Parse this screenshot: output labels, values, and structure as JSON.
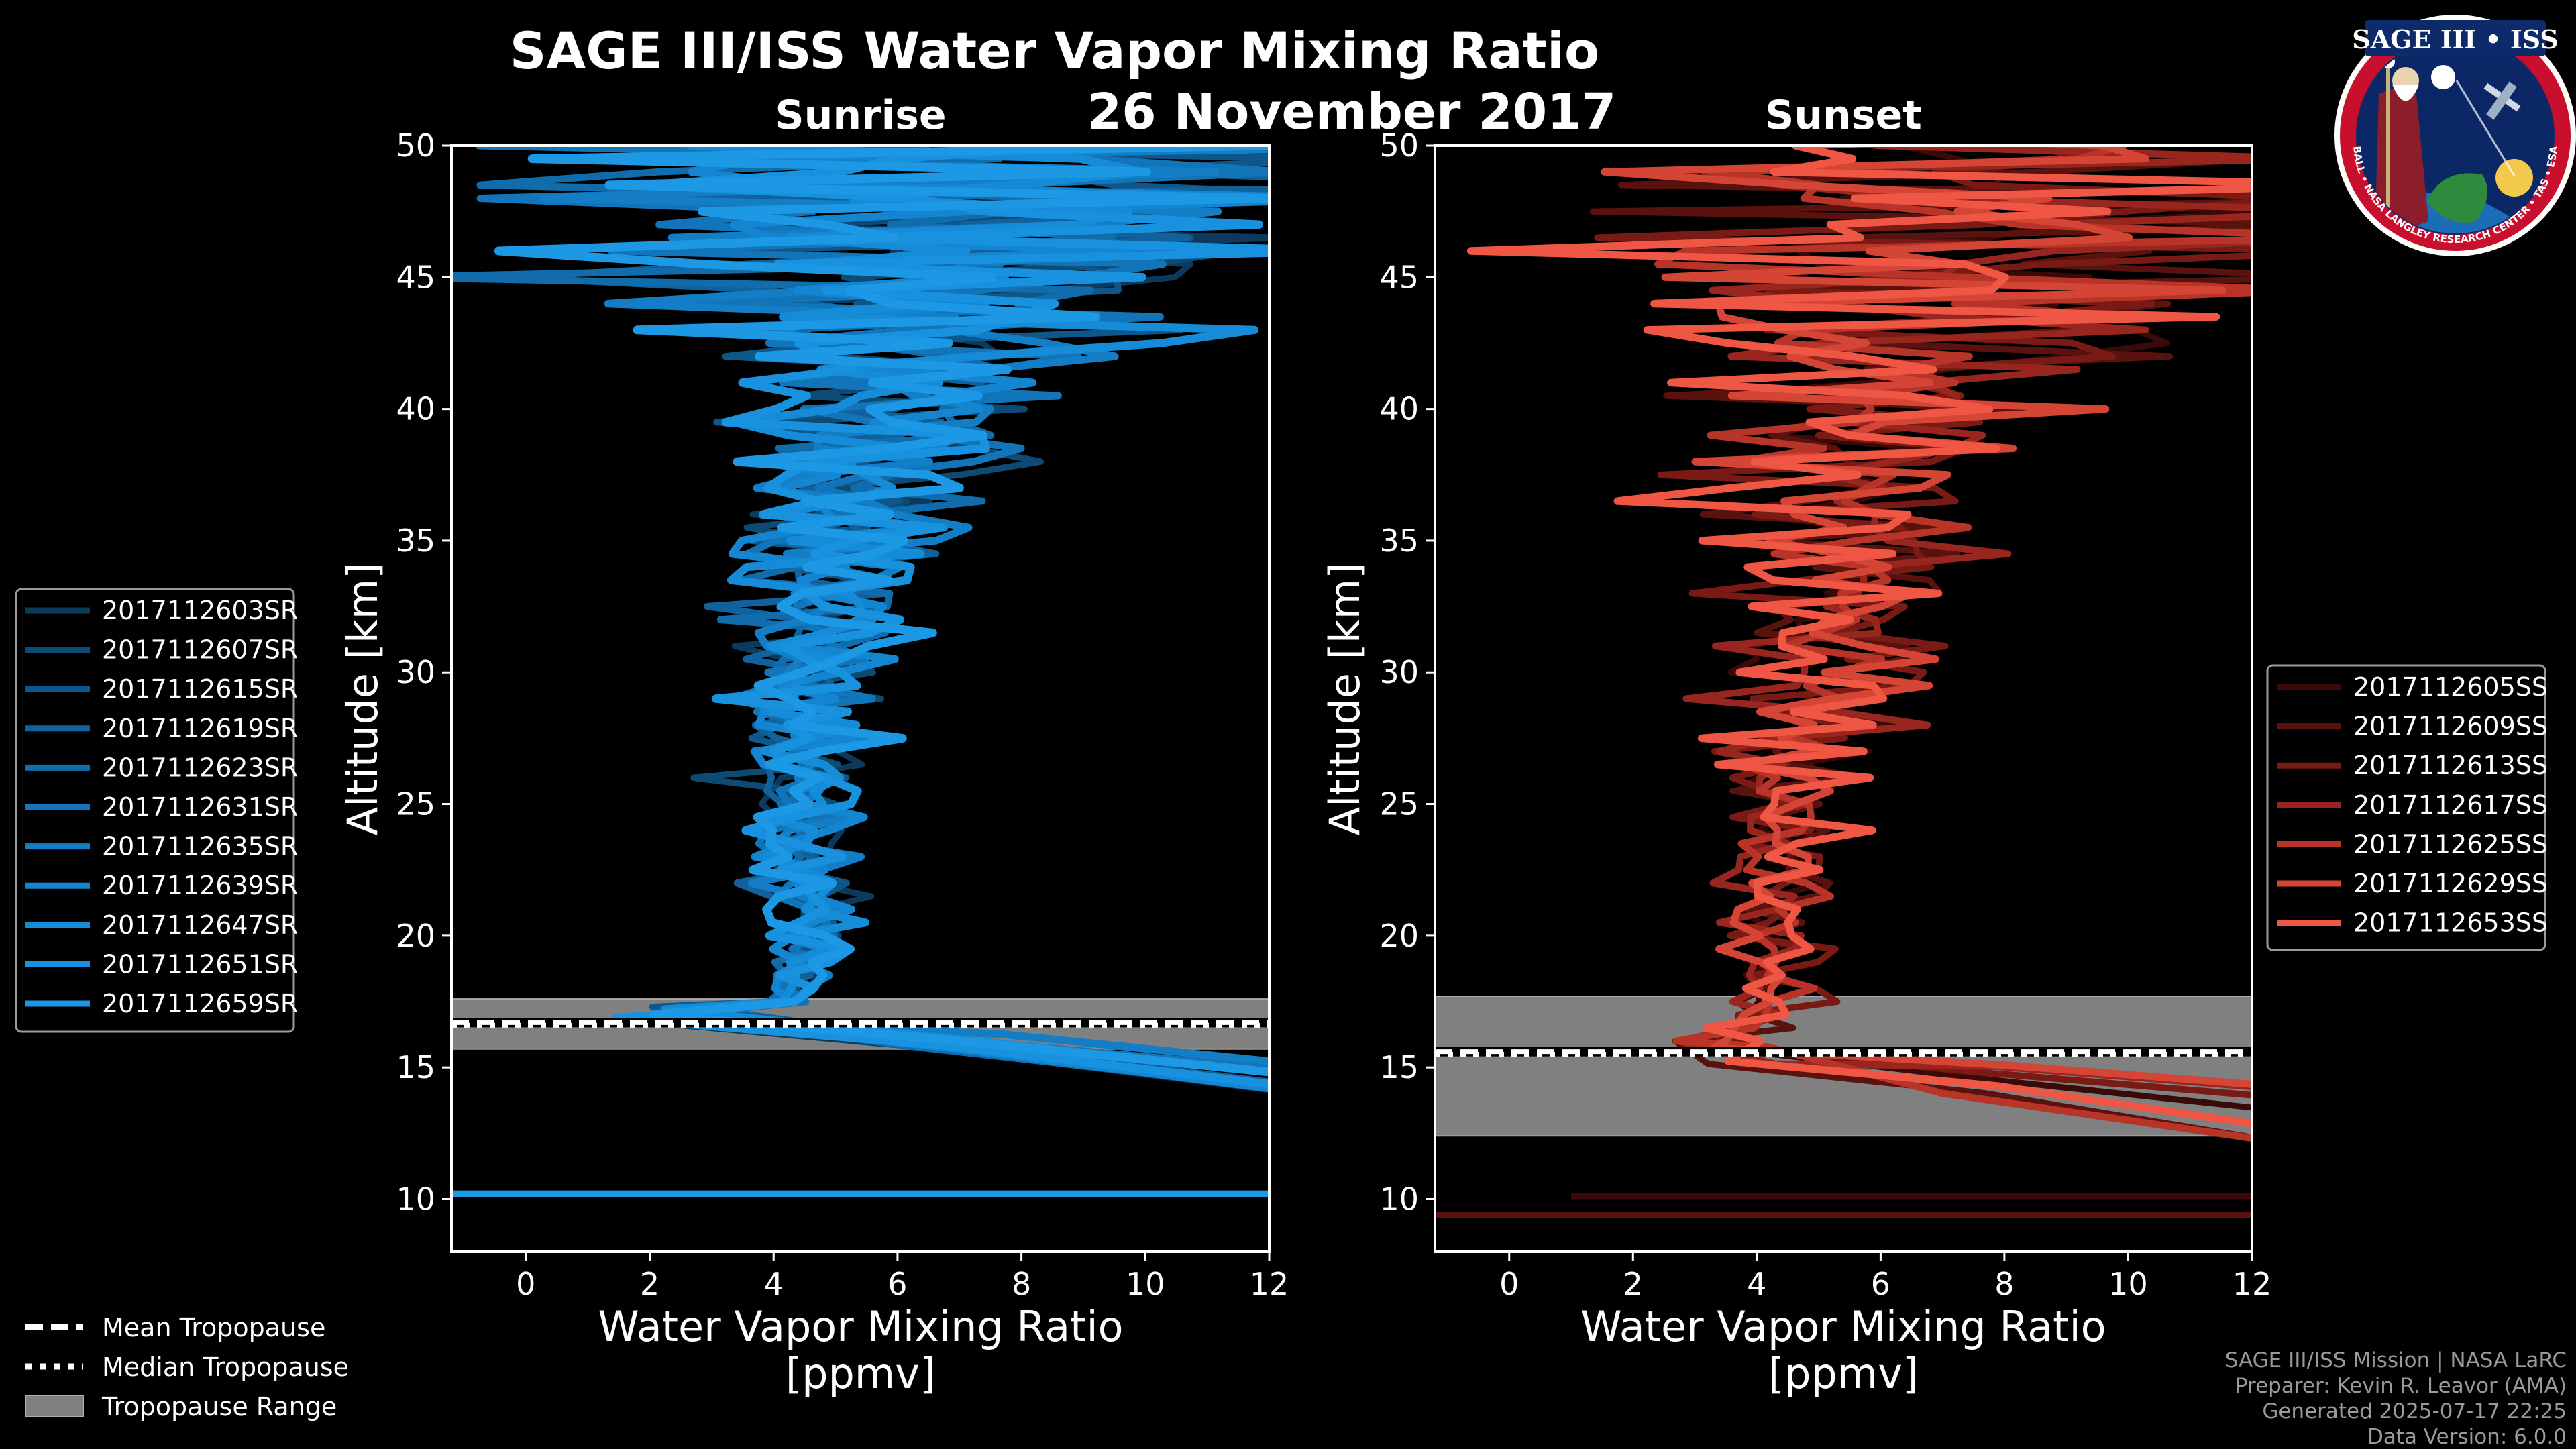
{
  "header": {
    "title": "SAGE III/ISS Water Vapor Mixing Ratio",
    "date": "26 November 2017"
  },
  "logo": {
    "name": "SAGE III • ISS",
    "ring_text": "BALL • NASA LANGLEY RESEARCH CENTER • TAS • ESA"
  },
  "chart_data": [
    {
      "type": "line",
      "panel": "sunrise",
      "subtitle": "Sunrise",
      "xlabel_line1": "Water Vapor Mixing Ratio",
      "xlabel_line2": "[ppmv]",
      "ylabel": "Altitude [km]",
      "xlim": [
        -1.2,
        12
      ],
      "ylim": [
        8,
        50
      ],
      "xticks": [
        0,
        2,
        4,
        6,
        8,
        10,
        12
      ],
      "yticks": [
        10,
        15,
        20,
        25,
        30,
        35,
        40,
        45,
        50
      ],
      "series": [
        {
          "name": "2017112603SR",
          "color": "#0b3a5c"
        },
        {
          "name": "2017112607SR",
          "color": "#0d4a74"
        },
        {
          "name": "2017112615SR",
          "color": "#0f578a"
        },
        {
          "name": "2017112619SR",
          "color": "#10619c"
        },
        {
          "name": "2017112623SR",
          "color": "#116cac"
        },
        {
          "name": "2017112631SR",
          "color": "#1275ba"
        },
        {
          "name": "2017112635SR",
          "color": "#137dc6"
        },
        {
          "name": "2017112639SR",
          "color": "#1485d0"
        },
        {
          "name": "2017112647SR",
          "color": "#168cd8"
        },
        {
          "name": "2017112651SR",
          "color": "#1892de"
        },
        {
          "name": "2017112659SR",
          "color": "#1c98e4"
        }
      ],
      "tropopause": {
        "mean": 16.7,
        "median": 16.6,
        "min": 15.7,
        "max": 17.6
      },
      "profile_mean": [
        [
          17.0,
          3.9
        ],
        [
          18,
          4.4
        ],
        [
          20,
          4.6
        ],
        [
          22,
          4.5
        ],
        [
          25,
          4.4
        ],
        [
          28,
          4.5
        ],
        [
          30,
          4.6
        ],
        [
          32,
          4.9
        ],
        [
          35,
          5.2
        ],
        [
          38,
          5.6
        ],
        [
          40,
          6.0
        ],
        [
          42,
          6.3
        ],
        [
          45,
          6.6
        ],
        [
          50,
          7.0
        ]
      ],
      "profile_spread": [
        [
          17.0,
          0.5
        ],
        [
          20,
          0.7
        ],
        [
          25,
          1.0
        ],
        [
          30,
          1.3
        ],
        [
          35,
          1.8
        ],
        [
          40,
          2.8
        ],
        [
          43,
          4.5
        ],
        [
          46,
          6.5
        ],
        [
          50,
          7.5
        ]
      ],
      "low_feature": {
        "pivot_alt": 17.0,
        "pivot_x": 1.8,
        "end_alt_min": 14.0,
        "end_alt_max": 15.2
      }
    },
    {
      "type": "line",
      "panel": "sunset",
      "subtitle": "Sunset",
      "xlabel_line1": "Water Vapor Mixing Ratio",
      "xlabel_line2": "[ppmv]",
      "ylabel": "Altitude [km]",
      "xlim": [
        -1.2,
        12
      ],
      "ylim": [
        8,
        50
      ],
      "xticks": [
        0,
        2,
        4,
        6,
        8,
        10,
        12
      ],
      "yticks": [
        10,
        15,
        20,
        25,
        30,
        35,
        40,
        45,
        50
      ],
      "series": [
        {
          "name": "2017112605SS",
          "color": "#3a0a08"
        },
        {
          "name": "2017112609SS",
          "color": "#5a120e"
        },
        {
          "name": "2017112613SS",
          "color": "#7a1a15"
        },
        {
          "name": "2017112617SS",
          "color": "#98261e"
        },
        {
          "name": "2017112625SS",
          "color": "#b83328"
        },
        {
          "name": "2017112629SS",
          "color": "#d44535"
        },
        {
          "name": "2017112653SS",
          "color": "#ef5744"
        }
      ],
      "tropopause": {
        "mean": 15.6,
        "median": 15.5,
        "min": 12.4,
        "max": 17.7
      },
      "profile_mean": [
        [
          15.0,
          3.0
        ],
        [
          17,
          4.2
        ],
        [
          20,
          4.4
        ],
        [
          22,
          4.3
        ],
        [
          25,
          4.4
        ],
        [
          28,
          4.7
        ],
        [
          30,
          5.0
        ],
        [
          32,
          5.2
        ],
        [
          35,
          5.4
        ],
        [
          38,
          5.7
        ],
        [
          40,
          6.2
        ],
        [
          42,
          6.6
        ],
        [
          45,
          6.9
        ],
        [
          50,
          7.0
        ]
      ],
      "profile_spread": [
        [
          15.0,
          0.8
        ],
        [
          18,
          0.8
        ],
        [
          22,
          0.9
        ],
        [
          26,
          1.3
        ],
        [
          30,
          2.0
        ],
        [
          35,
          2.6
        ],
        [
          40,
          3.2
        ],
        [
          43,
          4.5
        ],
        [
          46,
          6.5
        ],
        [
          50,
          7.5
        ]
      ],
      "low_feature": {
        "pivot_alt": 15.5,
        "pivot_x": 3.2,
        "end_alt_min": 11.8,
        "end_alt_max": 14.5
      }
    }
  ],
  "legend_tropopause": {
    "mean_label": "Mean Tropopause",
    "median_label": "Median Tropopause",
    "range_label": "Tropopause Range"
  },
  "credits": {
    "line1": "SAGE III/ISS Mission | NASA LaRC",
    "line2": "Preparer: Kevin R. Leavor (AMA)",
    "line3": "Generated 2025-07-17 22:25",
    "line4": "Data Version: 6.0.0"
  }
}
